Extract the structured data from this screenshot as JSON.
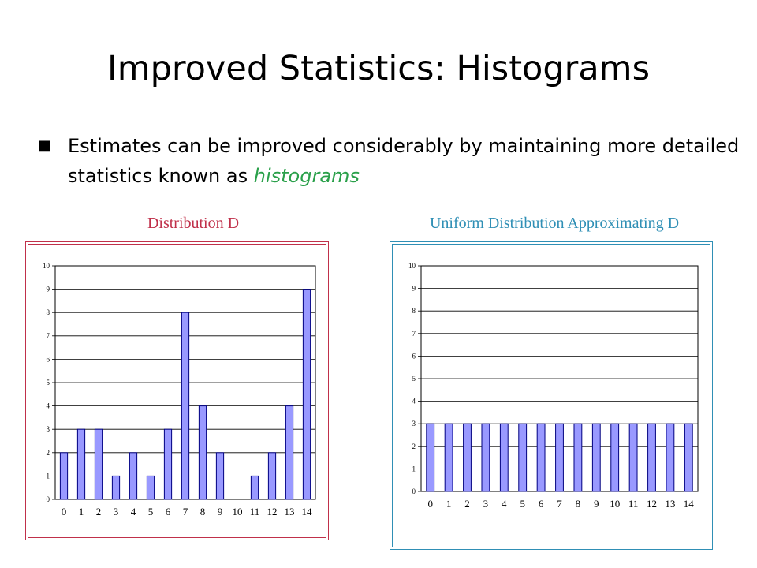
{
  "slide": {
    "title": "Improved Statistics: Histograms",
    "bullet_marker": "■",
    "bullet_text": "Estimates can be improved considerably by maintaining more detailed statistics known as",
    "bullet_emphasis": "histograms"
  },
  "colors": {
    "bar_fill": "#9999ff",
    "bar_stroke": "#000080",
    "grid": "#000000",
    "emphasis": "#2aa04a",
    "left_caption": "#c0304a",
    "right_caption": "#2f8fb5"
  },
  "chart_data": [
    {
      "type": "bar",
      "title": "Distribution D",
      "xlabel": "",
      "ylabel": "",
      "categories": [
        "0",
        "1",
        "2",
        "3",
        "4",
        "5",
        "6",
        "7",
        "8",
        "9",
        "10",
        "11",
        "12",
        "13",
        "14"
      ],
      "values": [
        2,
        3,
        3,
        1,
        2,
        1,
        3,
        8,
        4,
        2,
        0,
        1,
        2,
        4,
        9
      ],
      "ylim": [
        0,
        10
      ],
      "yticks": [
        "0",
        "1",
        "2",
        "3",
        "4",
        "5",
        "6",
        "7",
        "8",
        "9",
        "10"
      ],
      "grid": true
    },
    {
      "type": "bar",
      "title": "Uniform Distribution Approximating D",
      "xlabel": "",
      "ylabel": "",
      "categories": [
        "0",
        "1",
        "2",
        "3",
        "4",
        "5",
        "6",
        "7",
        "8",
        "9",
        "10",
        "11",
        "12",
        "13",
        "14"
      ],
      "values": [
        3,
        3,
        3,
        3,
        3,
        3,
        3,
        3,
        3,
        3,
        3,
        3,
        3,
        3,
        3
      ],
      "ylim": [
        0,
        10
      ],
      "yticks": [
        "0",
        "1",
        "2",
        "3",
        "4",
        "5",
        "6",
        "7",
        "8",
        "9",
        "10"
      ],
      "grid": true
    }
  ]
}
